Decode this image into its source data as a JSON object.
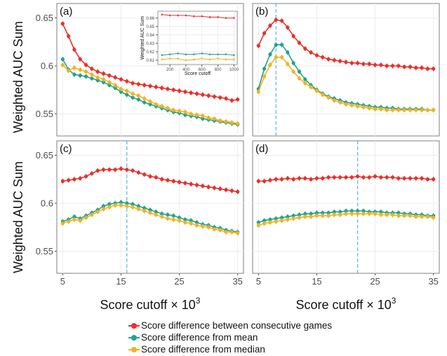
{
  "colors": {
    "consecutive": "#e8302c",
    "mean": "#1ea38f",
    "median": "#f0b323",
    "vline": "#5bb6e3"
  },
  "axis_labels": {
    "y_top": "Weighted AUC Sum",
    "y_bottom": "Weighted AUC Sum",
    "x_left": "Score cutoff × 10",
    "x_right": "Score cutoff × 10",
    "x_exponent": "3"
  },
  "legend": {
    "consecutive": "Score difference between consecutive games",
    "mean": "Score difference from mean",
    "median": "Score difference from median"
  },
  "chart_data": [
    {
      "panel": "(a)",
      "type": "line",
      "x_unit": "Score cutoff × 10^3",
      "x": [
        5,
        6,
        7,
        8,
        9,
        10,
        11,
        12,
        13,
        14,
        15,
        16,
        17,
        18,
        19,
        20,
        21,
        22,
        23,
        24,
        25,
        26,
        27,
        28,
        29,
        30,
        31,
        32,
        33,
        34,
        35
      ],
      "xlim": [
        4,
        36
      ],
      "ylim": [
        0.527,
        0.665
      ],
      "xticks": [
        "5",
        "15",
        "25",
        "35"
      ],
      "yticks": [
        "0.55",
        "0.6",
        "0.65"
      ],
      "vline": null,
      "series": [
        {
          "key": "consecutive",
          "values": [
            0.644,
            0.631,
            0.617,
            0.607,
            0.601,
            0.597,
            0.594,
            0.592,
            0.59,
            0.588,
            0.586,
            0.584,
            0.582,
            0.581,
            0.58,
            0.579,
            0.578,
            0.577,
            0.576,
            0.575,
            0.574,
            0.573,
            0.572,
            0.571,
            0.57,
            0.569,
            0.568,
            0.567,
            0.566,
            0.564,
            0.565
          ]
        },
        {
          "key": "mean",
          "values": [
            0.607,
            0.596,
            0.591,
            0.59,
            0.589,
            0.587,
            0.585,
            0.583,
            0.58,
            0.577,
            0.573,
            0.57,
            0.567,
            0.565,
            0.562,
            0.56,
            0.558,
            0.556,
            0.554,
            0.552,
            0.551,
            0.549,
            0.548,
            0.547,
            0.545,
            0.544,
            0.543,
            0.542,
            0.541,
            0.54,
            0.539
          ]
        },
        {
          "key": "median",
          "values": [
            0.601,
            0.595,
            0.598,
            0.596,
            0.594,
            0.591,
            0.588,
            0.586,
            0.583,
            0.58,
            0.576,
            0.574,
            0.571,
            0.569,
            0.566,
            0.563,
            0.56,
            0.558,
            0.556,
            0.554,
            0.553,
            0.552,
            0.55,
            0.549,
            0.548,
            0.546,
            0.545,
            0.543,
            0.542,
            0.541,
            0.54
          ]
        }
      ],
      "inset": {
        "type": "line",
        "xlabel": "Score cutoff",
        "ylabel": "Weighted AUC Sum",
        "x": [
          100,
          200,
          300,
          400,
          500,
          600,
          700,
          800,
          900,
          1000
        ],
        "xlim": [
          50,
          1040
        ],
        "ylim": [
          0.605,
          0.668
        ],
        "xticks": [
          "200",
          "400",
          "600",
          "800",
          "1000"
        ],
        "yticks": [
          "0.61",
          "0.62",
          "0.63",
          "0.64",
          "0.65",
          "0.66"
        ],
        "series": [
          {
            "key": "consecutive",
            "values": [
              0.664,
              0.663,
              0.663,
              0.663,
              0.662,
              0.662,
              0.661,
              0.661,
              0.66,
              0.66
            ]
          },
          {
            "key": "mean",
            "values": [
              0.616,
              0.617,
              0.618,
              0.617,
              0.617,
              0.618,
              0.617,
              0.617,
              0.617,
              0.616
            ]
          },
          {
            "key": "median",
            "values": [
              0.611,
              0.612,
              0.612,
              0.61,
              0.611,
              0.612,
              0.611,
              0.612,
              0.611,
              0.611
            ]
          }
        ]
      }
    },
    {
      "panel": "(b)",
      "type": "line",
      "x_unit": "Score cutoff × 10^3",
      "x": [
        5,
        6,
        7,
        8,
        9,
        10,
        11,
        12,
        13,
        14,
        15,
        16,
        17,
        18,
        19,
        20,
        21,
        22,
        23,
        24,
        25,
        26,
        27,
        28,
        29,
        30,
        31,
        32,
        33,
        34,
        35
      ],
      "xlim": [
        4,
        36
      ],
      "ylim": [
        0.527,
        0.665
      ],
      "xticks": [
        "5",
        "15",
        "25",
        "35"
      ],
      "yticks": [
        "0.55",
        "0.6",
        "0.65"
      ],
      "vline": 8,
      "series": [
        {
          "key": "consecutive",
          "values": [
            0.621,
            0.634,
            0.642,
            0.648,
            0.647,
            0.64,
            0.631,
            0.624,
            0.618,
            0.614,
            0.611,
            0.609,
            0.607,
            0.606,
            0.605,
            0.604,
            0.603,
            0.603,
            0.602,
            0.602,
            0.601,
            0.601,
            0.6,
            0.6,
            0.6,
            0.599,
            0.599,
            0.598,
            0.598,
            0.597,
            0.597
          ]
        },
        {
          "key": "mean",
          "values": [
            0.576,
            0.597,
            0.612,
            0.622,
            0.622,
            0.614,
            0.603,
            0.594,
            0.586,
            0.58,
            0.575,
            0.571,
            0.568,
            0.566,
            0.564,
            0.562,
            0.561,
            0.56,
            0.559,
            0.558,
            0.557,
            0.557,
            0.556,
            0.556,
            0.555,
            0.555,
            0.555,
            0.555,
            0.555,
            0.554,
            0.554
          ]
        },
        {
          "key": "median",
          "values": [
            0.573,
            0.589,
            0.601,
            0.609,
            0.609,
            0.602,
            0.594,
            0.587,
            0.582,
            0.578,
            0.574,
            0.57,
            0.567,
            0.564,
            0.562,
            0.56,
            0.559,
            0.558,
            0.557,
            0.556,
            0.555,
            0.555,
            0.554,
            0.554,
            0.554,
            0.554,
            0.554,
            0.554,
            0.554,
            0.554,
            0.554
          ]
        }
      ]
    },
    {
      "panel": "(c)",
      "type": "line",
      "x_unit": "Score cutoff × 10^3",
      "x": [
        5,
        6,
        7,
        8,
        9,
        10,
        11,
        12,
        13,
        14,
        15,
        16,
        17,
        18,
        19,
        20,
        21,
        22,
        23,
        24,
        25,
        26,
        27,
        28,
        29,
        30,
        31,
        32,
        33,
        34,
        35
      ],
      "xlim": [
        4,
        36
      ],
      "ylim": [
        0.527,
        0.665
      ],
      "xticks": [
        "5",
        "15",
        "25",
        "35"
      ],
      "yticks": [
        "0.55",
        "0.6",
        "0.65"
      ],
      "vline": 16,
      "series": [
        {
          "key": "consecutive",
          "values": [
            0.623,
            0.624,
            0.625,
            0.626,
            0.628,
            0.631,
            0.634,
            0.635,
            0.635,
            0.635,
            0.636,
            0.635,
            0.634,
            0.632,
            0.63,
            0.628,
            0.627,
            0.625,
            0.624,
            0.623,
            0.622,
            0.621,
            0.62,
            0.619,
            0.618,
            0.617,
            0.616,
            0.615,
            0.614,
            0.613,
            0.612
          ]
        },
        {
          "key": "mean",
          "values": [
            0.581,
            0.583,
            0.586,
            0.584,
            0.587,
            0.59,
            0.593,
            0.597,
            0.599,
            0.6,
            0.601,
            0.6,
            0.599,
            0.597,
            0.595,
            0.593,
            0.591,
            0.589,
            0.588,
            0.587,
            0.585,
            0.583,
            0.582,
            0.58,
            0.578,
            0.577,
            0.575,
            0.574,
            0.572,
            0.571,
            0.57
          ]
        },
        {
          "key": "median",
          "values": [
            0.579,
            0.581,
            0.583,
            0.582,
            0.585,
            0.588,
            0.591,
            0.594,
            0.596,
            0.598,
            0.598,
            0.597,
            0.596,
            0.594,
            0.592,
            0.59,
            0.588,
            0.586,
            0.584,
            0.583,
            0.582,
            0.58,
            0.579,
            0.577,
            0.576,
            0.575,
            0.573,
            0.572,
            0.57,
            0.57,
            0.569
          ]
        }
      ]
    },
    {
      "panel": "(d)",
      "type": "line",
      "x_unit": "Score cutoff × 10^3",
      "x": [
        5,
        6,
        7,
        8,
        9,
        10,
        11,
        12,
        13,
        14,
        15,
        16,
        17,
        18,
        19,
        20,
        21,
        22,
        23,
        24,
        25,
        26,
        27,
        28,
        29,
        30,
        31,
        32,
        33,
        34,
        35
      ],
      "xlim": [
        4,
        36
      ],
      "ylim": [
        0.527,
        0.665
      ],
      "xticks": [
        "5",
        "15",
        "25",
        "35"
      ],
      "yticks": [
        "0.55",
        "0.6",
        "0.65"
      ],
      "vline": 22,
      "series": [
        {
          "key": "consecutive",
          "values": [
            0.623,
            0.623,
            0.624,
            0.625,
            0.625,
            0.626,
            0.625,
            0.626,
            0.626,
            0.625,
            0.626,
            0.626,
            0.627,
            0.627,
            0.627,
            0.627,
            0.627,
            0.628,
            0.627,
            0.627,
            0.628,
            0.627,
            0.627,
            0.627,
            0.626,
            0.626,
            0.626,
            0.626,
            0.626,
            0.625,
            0.625
          ]
        },
        {
          "key": "mean",
          "values": [
            0.58,
            0.582,
            0.583,
            0.584,
            0.585,
            0.586,
            0.587,
            0.588,
            0.589,
            0.589,
            0.59,
            0.59,
            0.59,
            0.591,
            0.591,
            0.592,
            0.592,
            0.592,
            0.592,
            0.591,
            0.591,
            0.591,
            0.59,
            0.59,
            0.59,
            0.589,
            0.589,
            0.588,
            0.588,
            0.587,
            0.587
          ]
        },
        {
          "key": "median",
          "values": [
            0.577,
            0.579,
            0.58,
            0.581,
            0.582,
            0.583,
            0.584,
            0.585,
            0.586,
            0.586,
            0.587,
            0.587,
            0.587,
            0.588,
            0.588,
            0.589,
            0.589,
            0.589,
            0.589,
            0.589,
            0.589,
            0.588,
            0.588,
            0.588,
            0.587,
            0.587,
            0.587,
            0.586,
            0.586,
            0.586,
            0.585
          ]
        }
      ]
    }
  ]
}
